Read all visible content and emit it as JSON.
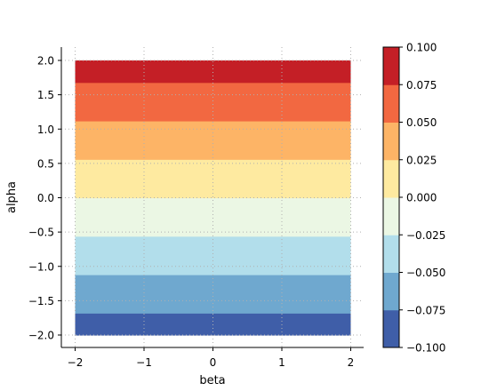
{
  "chart_data": {
    "type": "heatmap",
    "subtype": "filled-contour",
    "xlabel": "beta",
    "ylabel": "alpha",
    "xlim": [
      -2,
      2
    ],
    "ylim": [
      -2,
      2
    ],
    "x_ticks": [
      -2,
      -1,
      0,
      1,
      2
    ],
    "x_tick_labels": [
      "−2",
      "−1",
      "0",
      "1",
      "2"
    ],
    "y_ticks": [
      2.0,
      1.5,
      1.0,
      0.5,
      0.0,
      -0.5,
      -1.0,
      -1.5,
      -2.0
    ],
    "y_tick_labels": [
      "2.0",
      "1.5",
      "1.0",
      "0.5",
      "0.0",
      "−0.5",
      "−1.0",
      "−1.5",
      "−2.0"
    ],
    "grid": true,
    "grid_style": "dotted",
    "colormap": "RdYlBu_r",
    "bands": [
      {
        "from": -2.0,
        "to": -1.68,
        "level_low": -0.1,
        "level_high": -0.075,
        "color": "#3f5ea8"
      },
      {
        "from": -1.68,
        "to": -1.12,
        "level_low": -0.075,
        "level_high": -0.05,
        "color": "#6fa8cf"
      },
      {
        "from": -1.12,
        "to": -0.56,
        "level_low": -0.05,
        "level_high": -0.025,
        "color": "#b2deeb"
      },
      {
        "from": -0.56,
        "to": 0.0,
        "level_low": -0.025,
        "level_high": 0.0,
        "color": "#ebf7e4"
      },
      {
        "from": 0.0,
        "to": 0.56,
        "level_low": 0.0,
        "level_high": 0.025,
        "color": "#feeaa0"
      },
      {
        "from": 0.56,
        "to": 1.12,
        "level_low": 0.025,
        "level_high": 0.05,
        "color": "#fdb466"
      },
      {
        "from": 1.12,
        "to": 1.68,
        "level_low": 0.05,
        "level_high": 0.075,
        "color": "#f26841"
      },
      {
        "from": 1.68,
        "to": 2.0,
        "level_low": 0.075,
        "level_high": 0.1,
        "color": "#c41f26"
      }
    ],
    "colorbar": {
      "levels": [
        -0.1,
        -0.075,
        -0.05,
        -0.025,
        0.0,
        0.025,
        0.05,
        0.075,
        0.1
      ],
      "tick_labels": [
        "−0.100",
        "−0.075",
        "−0.050",
        "−0.025",
        "0.000",
        "0.025",
        "0.050",
        "0.075",
        "0.100"
      ],
      "colors": [
        "#3f5ea8",
        "#6fa8cf",
        "#b2deeb",
        "#ebf7e4",
        "#feeaa0",
        "#fdb466",
        "#f26841",
        "#c41f26"
      ]
    }
  }
}
